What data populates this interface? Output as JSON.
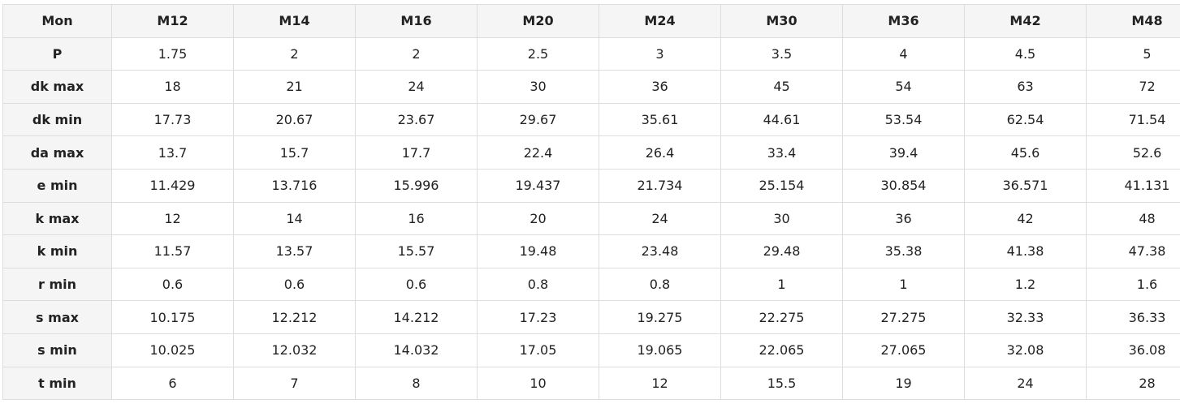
{
  "table": {
    "header": [
      "Mon",
      "M12",
      "M14",
      "M16",
      "M20",
      "M24",
      "M30",
      "M36",
      "M42",
      "M48"
    ],
    "rows": [
      [
        "P",
        "1.75",
        "2",
        "2",
        "2.5",
        "3",
        "3.5",
        "4",
        "4.5",
        "5"
      ],
      [
        "dk max",
        "18",
        "21",
        "24",
        "30",
        "36",
        "45",
        "54",
        "63",
        "72"
      ],
      [
        "dk min",
        "17.73",
        "20.67",
        "23.67",
        "29.67",
        "35.61",
        "44.61",
        "53.54",
        "62.54",
        "71.54"
      ],
      [
        "da max",
        "13.7",
        "15.7",
        "17.7",
        "22.4",
        "26.4",
        "33.4",
        "39.4",
        "45.6",
        "52.6"
      ],
      [
        "e min",
        "11.429",
        "13.716",
        "15.996",
        "19.437",
        "21.734",
        "25.154",
        "30.854",
        "36.571",
        "41.131"
      ],
      [
        "k max",
        "12",
        "14",
        "16",
        "20",
        "24",
        "30",
        "36",
        "42",
        "48"
      ],
      [
        "k min",
        "11.57",
        "13.57",
        "15.57",
        "19.48",
        "23.48",
        "29.48",
        "35.38",
        "41.38",
        "47.38"
      ],
      [
        "r min",
        "0.6",
        "0.6",
        "0.6",
        "0.8",
        "0.8",
        "1",
        "1",
        "1.2",
        "1.6"
      ],
      [
        "s max",
        "10.175",
        "12.212",
        "14.212",
        "17.23",
        "19.275",
        "22.275",
        "27.275",
        "32.33",
        "36.33"
      ],
      [
        "s min",
        "10.025",
        "12.032",
        "14.032",
        "17.05",
        "19.065",
        "22.065",
        "27.065",
        "32.08",
        "36.08"
      ],
      [
        "t min",
        "6",
        "7",
        "8",
        "10",
        "12",
        "15.5",
        "19",
        "24",
        "28"
      ]
    ]
  }
}
